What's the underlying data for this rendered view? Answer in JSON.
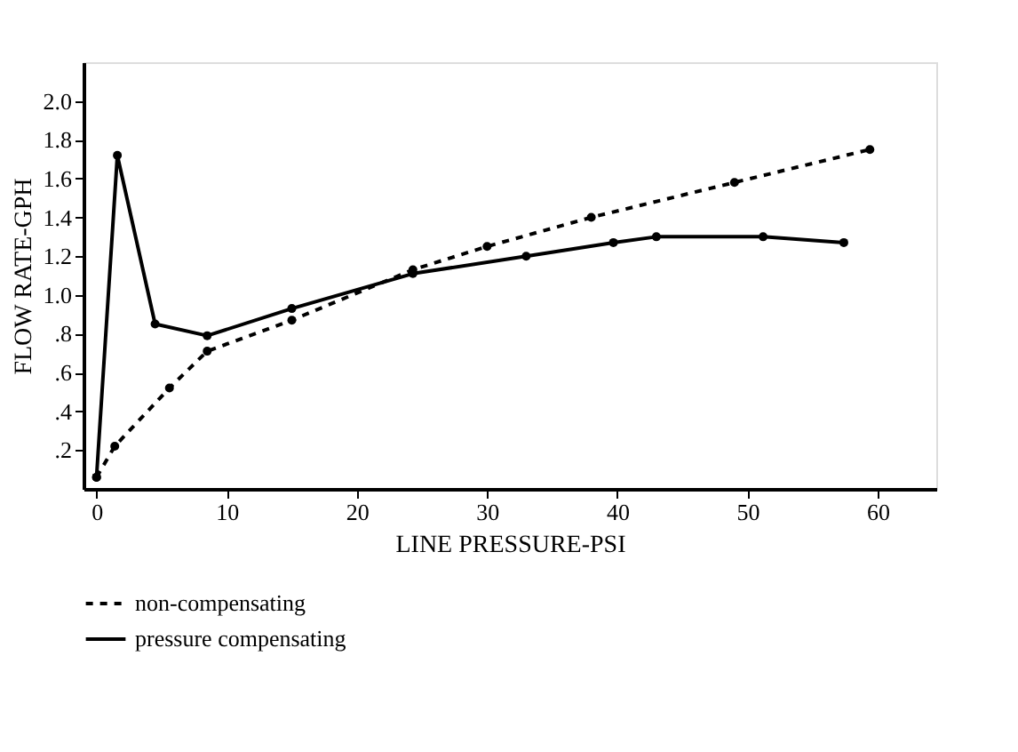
{
  "chart_data": {
    "type": "line",
    "xlabel": "LINE PRESSURE-PSI",
    "ylabel": "FLOW RATE-GPH",
    "xlim": [
      -1,
      64.5
    ],
    "ylim": [
      0,
      2.2
    ],
    "xticks": [
      0,
      10,
      20,
      30,
      40,
      50,
      60
    ],
    "yticks": [
      {
        "value": 0.2,
        "label": ".2"
      },
      {
        "value": 0.4,
        "label": ".4"
      },
      {
        "value": 0.6,
        "label": ".6"
      },
      {
        "value": 0.8,
        "label": ".8"
      },
      {
        "value": 1.0,
        "label": "1.0"
      },
      {
        "value": 1.2,
        "label": "1.2"
      },
      {
        "value": 1.4,
        "label": "1.4"
      },
      {
        "value": 1.6,
        "label": "1.6"
      },
      {
        "value": 1.8,
        "label": "1.8"
      },
      {
        "value": 2.0,
        "label": "2.0"
      }
    ],
    "grid": false,
    "legend": "bottom",
    "marker": "circle",
    "series": [
      {
        "name": "non-compensating",
        "color": "#000000",
        "line_style": "dashed",
        "x": [
          0,
          1.4,
          5.6,
          8.5,
          15,
          24.3,
          30,
          38,
          49,
          59.4
        ],
        "values": [
          0.06,
          0.22,
          0.52,
          0.71,
          0.87,
          1.13,
          1.25,
          1.4,
          1.58,
          1.75
        ]
      },
      {
        "name": "pressure compensating",
        "color": "#000000",
        "line_style": "solid",
        "x": [
          0,
          1.6,
          4.5,
          8.5,
          15,
          24.3,
          33,
          39.7,
          43,
          51.2,
          57.4
        ],
        "values": [
          0.06,
          1.72,
          0.85,
          0.79,
          0.93,
          1.11,
          1.2,
          1.27,
          1.3,
          1.3,
          1.27
        ]
      }
    ]
  }
}
